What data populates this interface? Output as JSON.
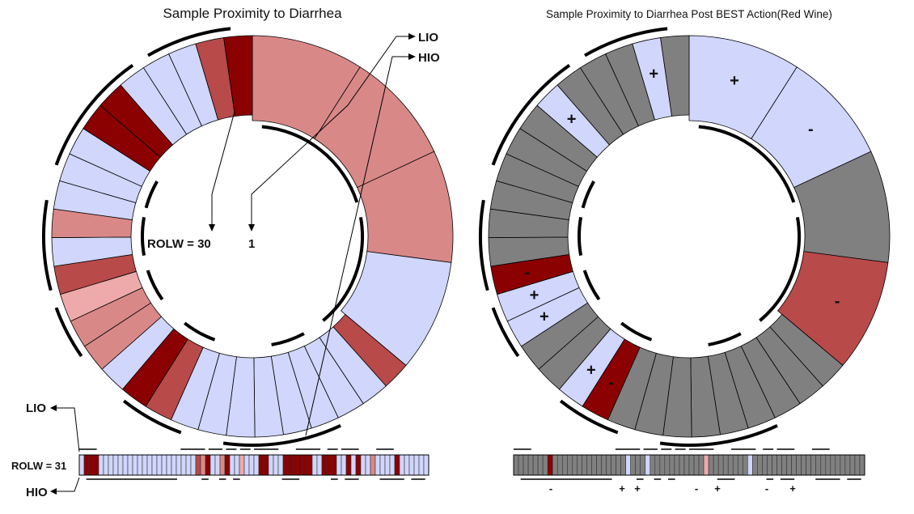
{
  "palette": {
    "dark_red": "#8b0000",
    "mid_red": "#b84a4a",
    "light_red": "#d98888",
    "pale_red": "#eeaaaa",
    "lavender": "#d0d6fc",
    "gray": "#808080",
    "black": "#000000"
  },
  "left_panel": {
    "title": "Sample Proximity to Diarrhea",
    "rolw_label": "ROLW = 30",
    "one_label": "1",
    "lio_label": "LIO",
    "hio_label": "HIO",
    "segments": [
      {
        "c": "light_red"
      },
      {
        "c": "light_red"
      },
      {
        "c": "light_red"
      },
      {
        "c": "lavender"
      },
      {
        "c": "mid_red"
      },
      {
        "c": "lavender"
      },
      {
        "c": "lavender"
      },
      {
        "c": "lavender"
      },
      {
        "c": "lavender"
      },
      {
        "c": "lavender"
      },
      {
        "c": "lavender"
      },
      {
        "c": "lavender"
      },
      {
        "c": "lavender"
      },
      {
        "c": "mid_red"
      },
      {
        "c": "dark_red"
      },
      {
        "c": "lavender"
      },
      {
        "c": "light_red"
      },
      {
        "c": "light_red"
      },
      {
        "c": "pale_red"
      },
      {
        "c": "mid_red"
      },
      {
        "c": "lavender"
      },
      {
        "c": "light_red"
      },
      {
        "c": "lavender"
      },
      {
        "c": "lavender"
      },
      {
        "c": "lavender"
      },
      {
        "c": "dark_red"
      },
      {
        "c": "dark_red"
      },
      {
        "c": "lavender"
      },
      {
        "c": "lavender"
      },
      {
        "c": "lavender"
      },
      {
        "c": "mid_red"
      },
      {
        "c": "dark_red"
      }
    ]
  },
  "right_panel": {
    "title": "Sample Proximity to Diarrhea Post BEST Action(Red Wine)",
    "segments": [
      {
        "c": "lavender",
        "s": "+"
      },
      {
        "c": "lavender",
        "s": "-"
      },
      {
        "c": "gray",
        "s": ""
      },
      {
        "c": "mid_red",
        "s": "-"
      },
      {
        "c": "gray",
        "s": ""
      },
      {
        "c": "gray",
        "s": ""
      },
      {
        "c": "gray",
        "s": ""
      },
      {
        "c": "gray",
        "s": ""
      },
      {
        "c": "gray",
        "s": ""
      },
      {
        "c": "gray",
        "s": ""
      },
      {
        "c": "gray",
        "s": ""
      },
      {
        "c": "gray",
        "s": ""
      },
      {
        "c": "gray",
        "s": ""
      },
      {
        "c": "dark_red",
        "s": "-"
      },
      {
        "c": "lavender",
        "s": "+"
      },
      {
        "c": "gray",
        "s": ""
      },
      {
        "c": "gray",
        "s": ""
      },
      {
        "c": "lavender",
        "s": "+"
      },
      {
        "c": "lavender",
        "s": "+"
      },
      {
        "c": "dark_red",
        "s": "-"
      },
      {
        "c": "gray",
        "s": ""
      },
      {
        "c": "gray",
        "s": ""
      },
      {
        "c": "gray",
        "s": ""
      },
      {
        "c": "gray",
        "s": ""
      },
      {
        "c": "gray",
        "s": ""
      },
      {
        "c": "gray",
        "s": ""
      },
      {
        "c": "lavender",
        "s": "+"
      },
      {
        "c": "gray",
        "s": ""
      },
      {
        "c": "gray",
        "s": ""
      },
      {
        "c": "gray",
        "s": ""
      },
      {
        "c": "lavender",
        "s": "+"
      },
      {
        "c": "gray",
        "s": ""
      }
    ]
  },
  "left_strip": {
    "rolw_label": "ROLW = 31",
    "lio_label": "LIO",
    "hio_label": "HIO",
    "cells": [
      "lavender",
      "dark_red",
      "dark_red",
      "dark_red",
      "lavender",
      "lavender",
      "lavender",
      "lavender",
      "lavender",
      "lavender",
      "lavender",
      "lavender",
      "lavender",
      "lavender",
      "lavender",
      "lavender",
      "lavender",
      "lavender",
      "lavender",
      "lavender",
      "lavender",
      "lavender",
      "lavender",
      "lavender",
      "mid_red",
      "light_red",
      "dark_red",
      "lavender",
      "lavender",
      "light_red",
      "dark_red",
      "lavender",
      "lavender",
      "pale_red",
      "lavender",
      "lavender",
      "lavender",
      "dark_red",
      "dark_red",
      "lavender",
      "lavender",
      "lavender",
      "dark_red",
      "dark_red",
      "dark_red",
      "dark_red",
      "dark_red",
      "dark_red",
      "lavender",
      "lavender",
      "dark_red",
      "dark_red",
      "dark_red",
      "lavender",
      "lavender",
      "dark_red",
      "lavender",
      "dark_red",
      "lavender",
      "lavender",
      "light_red",
      "lavender",
      "lavender",
      "lavender",
      "lavender",
      "dark_red",
      "lavender",
      "lavender",
      "lavender",
      "lavender",
      "lavender",
      "lavender"
    ]
  },
  "right_strip": {
    "cells": [
      "gray",
      "gray",
      "gray",
      "gray",
      "gray",
      "gray",
      "gray",
      "dark_red",
      "gray",
      "gray",
      "gray",
      "gray",
      "gray",
      "gray",
      "gray",
      "gray",
      "gray",
      "gray",
      "gray",
      "gray",
      "gray",
      "gray",
      "gray",
      "lavender",
      "gray",
      "gray",
      "gray",
      "lavender",
      "gray",
      "gray",
      "gray",
      "gray",
      "gray",
      "gray",
      "gray",
      "gray",
      "gray",
      "gray",
      "gray",
      "pale_red",
      "gray",
      "gray",
      "gray",
      "gray",
      "gray",
      "gray",
      "gray",
      "gray",
      "lavender",
      "gray",
      "gray",
      "gray",
      "gray",
      "gray",
      "gray",
      "gray",
      "gray",
      "gray",
      "gray",
      "gray",
      "gray",
      "gray",
      "gray",
      "gray",
      "gray",
      "gray",
      "gray",
      "gray",
      "gray",
      "gray",
      "gray",
      "gray"
    ],
    "signs": [
      "-",
      "+",
      "+",
      "-",
      "+",
      "-",
      "+"
    ]
  }
}
